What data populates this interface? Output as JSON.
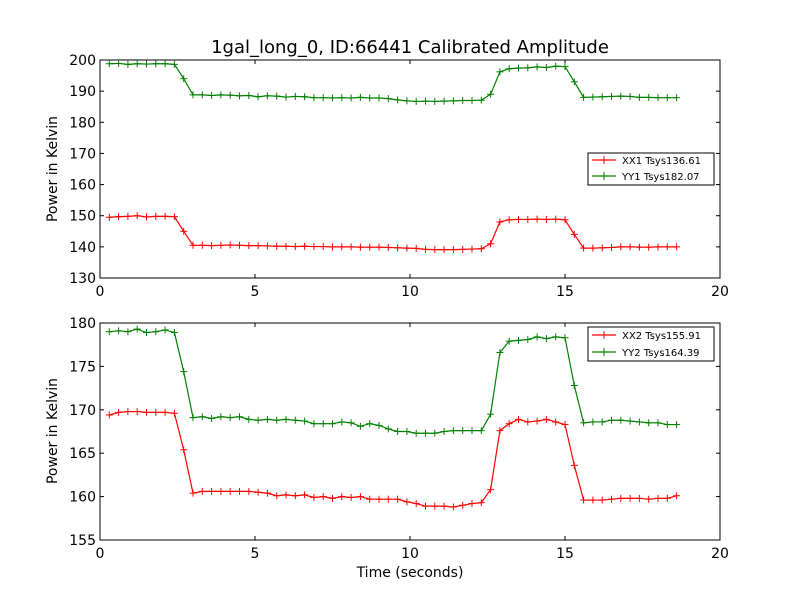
{
  "chart_data": [
    {
      "type": "line",
      "title": "1gal_long_0, ID:66441 Calibrated Amplitude",
      "xlabel": "",
      "ylabel": "Power in Kelvin",
      "xlim": [
        0,
        20
      ],
      "ylim": [
        130,
        200
      ],
      "xticks": [
        "0",
        "5",
        "10",
        "15",
        "20"
      ],
      "yticks": [
        "130",
        "140",
        "150",
        "160",
        "170",
        "180",
        "190",
        "200"
      ],
      "legend_position": "center-right",
      "x": [
        0.3,
        0.6,
        0.9,
        1.2,
        1.5,
        1.8,
        2.1,
        2.4,
        2.7,
        3.0,
        3.3,
        3.6,
        3.9,
        4.2,
        4.5,
        4.8,
        5.1,
        5.4,
        5.7,
        6.0,
        6.3,
        6.6,
        6.9,
        7.2,
        7.5,
        7.8,
        8.1,
        8.4,
        8.7,
        9.0,
        9.3,
        9.6,
        9.9,
        10.2,
        10.5,
        10.8,
        11.1,
        11.4,
        11.7,
        12.0,
        12.3,
        12.6,
        12.9,
        13.2,
        13.5,
        13.8,
        14.1,
        14.4,
        14.7,
        15.0,
        15.3,
        15.6,
        15.9,
        16.2,
        16.5,
        16.8,
        17.1,
        17.4,
        17.7,
        18.0,
        18.3,
        18.6
      ],
      "series": [
        {
          "name": "XX1 Tsys136.61",
          "color": "#ff0000",
          "values": [
            149.5,
            149.7,
            149.8,
            150.0,
            149.6,
            149.8,
            149.8,
            149.7,
            145.0,
            140.5,
            140.5,
            140.4,
            140.5,
            140.6,
            140.5,
            140.4,
            140.4,
            140.3,
            140.2,
            140.2,
            140.1,
            140.2,
            140.1,
            140.1,
            140.0,
            140.0,
            140.0,
            139.9,
            139.9,
            139.9,
            139.8,
            139.7,
            139.6,
            139.5,
            139.2,
            139.1,
            139.1,
            139.1,
            139.2,
            139.3,
            139.4,
            141.0,
            148.0,
            148.7,
            148.8,
            148.8,
            148.9,
            148.8,
            148.9,
            148.7,
            144.0,
            139.6,
            139.6,
            139.7,
            139.8,
            140.0,
            140.0,
            139.9,
            139.9,
            140.0,
            140.0,
            140.0
          ]
        },
        {
          "name": "YY1 Tsys182.07",
          "color": "#008000",
          "values": [
            198.8,
            198.9,
            198.6,
            198.8,
            198.7,
            198.8,
            198.8,
            198.6,
            194.0,
            188.8,
            188.8,
            188.6,
            188.8,
            188.7,
            188.5,
            188.6,
            188.2,
            188.5,
            188.4,
            188.1,
            188.3,
            188.2,
            187.9,
            187.9,
            187.8,
            187.9,
            187.8,
            188.0,
            187.8,
            187.8,
            187.6,
            187.2,
            186.9,
            186.7,
            186.8,
            186.7,
            186.8,
            186.9,
            187.0,
            187.0,
            187.1,
            189.0,
            196.2,
            197.2,
            197.4,
            197.5,
            197.8,
            197.6,
            198.0,
            197.9,
            193.0,
            188.0,
            188.1,
            188.2,
            188.3,
            188.4,
            188.3,
            188.0,
            188.0,
            187.9,
            187.9,
            187.9
          ]
        }
      ]
    },
    {
      "type": "line",
      "title": "",
      "xlabel": "Time (seconds)",
      "ylabel": "Power in Kelvin",
      "xlim": [
        0,
        20
      ],
      "ylim": [
        155,
        180
      ],
      "xticks": [
        "0",
        "5",
        "10",
        "15",
        "20"
      ],
      "yticks": [
        "155",
        "160",
        "165",
        "170",
        "175",
        "180"
      ],
      "legend_position": "top-right",
      "x": [
        0.3,
        0.6,
        0.9,
        1.2,
        1.5,
        1.8,
        2.1,
        2.4,
        2.7,
        3.0,
        3.3,
        3.6,
        3.9,
        4.2,
        4.5,
        4.8,
        5.1,
        5.4,
        5.7,
        6.0,
        6.3,
        6.6,
        6.9,
        7.2,
        7.5,
        7.8,
        8.1,
        8.4,
        8.7,
        9.0,
        9.3,
        9.6,
        9.9,
        10.2,
        10.5,
        10.8,
        11.1,
        11.4,
        11.7,
        12.0,
        12.3,
        12.6,
        12.9,
        13.2,
        13.5,
        13.8,
        14.1,
        14.4,
        14.7,
        15.0,
        15.3,
        15.6,
        15.9,
        16.2,
        16.5,
        16.8,
        17.1,
        17.4,
        17.7,
        18.0,
        18.3,
        18.6
      ],
      "series": [
        {
          "name": "XX2 Tsys155.91",
          "color": "#ff0000",
          "values": [
            169.4,
            169.7,
            169.8,
            169.8,
            169.7,
            169.7,
            169.7,
            169.6,
            165.4,
            160.4,
            160.6,
            160.6,
            160.6,
            160.6,
            160.6,
            160.6,
            160.5,
            160.4,
            160.1,
            160.2,
            160.1,
            160.2,
            159.9,
            160.0,
            159.8,
            160.0,
            159.9,
            160.0,
            159.7,
            159.7,
            159.7,
            159.7,
            159.4,
            159.2,
            158.9,
            158.9,
            158.9,
            158.8,
            159.0,
            159.2,
            159.3,
            160.8,
            167.6,
            168.4,
            168.9,
            168.6,
            168.7,
            168.9,
            168.6,
            168.3,
            163.6,
            159.6,
            159.6,
            159.6,
            159.7,
            159.8,
            159.8,
            159.8,
            159.7,
            159.8,
            159.8,
            160.1
          ]
        },
        {
          "name": "YY2 Tsys164.39",
          "color": "#008000",
          "values": [
            179.0,
            179.1,
            179.0,
            179.3,
            178.9,
            179.0,
            179.2,
            178.9,
            174.4,
            169.1,
            169.2,
            169.0,
            169.2,
            169.1,
            169.2,
            168.9,
            168.8,
            168.9,
            168.8,
            168.9,
            168.8,
            168.7,
            168.4,
            168.4,
            168.4,
            168.6,
            168.5,
            168.1,
            168.4,
            168.2,
            167.8,
            167.5,
            167.5,
            167.3,
            167.3,
            167.3,
            167.5,
            167.6,
            167.6,
            167.6,
            167.6,
            169.5,
            176.6,
            177.9,
            178.0,
            178.1,
            178.4,
            178.2,
            178.4,
            178.3,
            172.8,
            168.5,
            168.6,
            168.6,
            168.8,
            168.8,
            168.7,
            168.6,
            168.5,
            168.5,
            168.3,
            168.3
          ]
        }
      ]
    }
  ]
}
